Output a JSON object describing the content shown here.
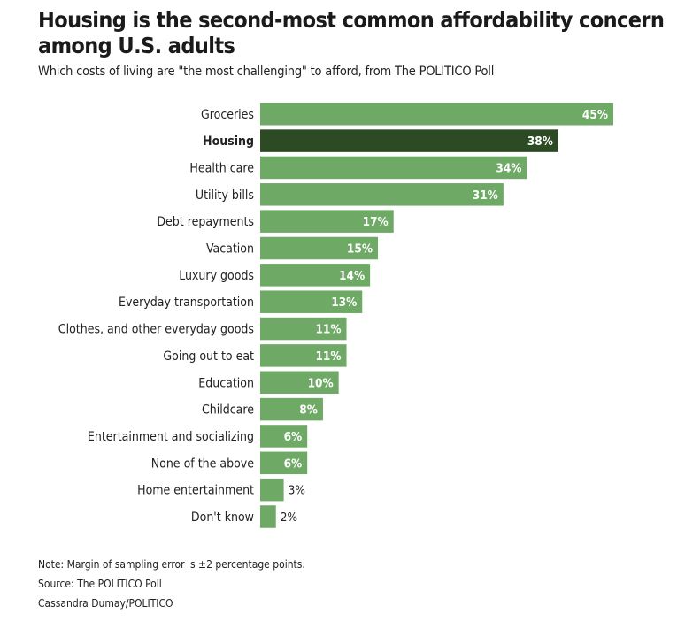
{
  "chart_data": {
    "type": "bar",
    "orientation": "horizontal",
    "title": "Housing is the second-most common affordability concern among U.S. adults",
    "subtitle": "Which costs of living are \"the most challenging\" to afford, from The POLITICO Poll",
    "categories": [
      "Groceries",
      "Housing",
      "Health care",
      "Utility bills",
      "Debt repayments",
      "Vacation",
      "Luxury goods",
      "Everyday transportation",
      "Clothes, and other everyday goods",
      "Going out to eat",
      "Education",
      "Childcare",
      "Entertainment and socializing",
      "None of the above",
      "Home entertainment",
      "Don't know"
    ],
    "values": [
      45,
      38,
      34,
      31,
      17,
      15,
      14,
      13,
      11,
      11,
      10,
      8,
      6,
      6,
      3,
      2
    ],
    "value_labels": [
      "45%",
      "38%",
      "34%",
      "31%",
      "17%",
      "15%",
      "14%",
      "13%",
      "11%",
      "11%",
      "10%",
      "8%",
      "6%",
      "6%",
      "3%",
      "2%"
    ],
    "highlight": "Housing",
    "unit": "%",
    "xlabel": "",
    "ylabel": "",
    "xlim": [
      0,
      45
    ],
    "grid": false,
    "legend": "none",
    "colors": {
      "default": "#6ea965",
      "highlight": "#2c4a24",
      "label_inside": "#ffffff",
      "label_outside": "#222222"
    }
  },
  "footer": {
    "note": "Note: Margin of sampling error is ±2 percentage points.",
    "source": "Source: The POLITICO Poll",
    "credit": "Cassandra Dumay/POLITICO"
  }
}
